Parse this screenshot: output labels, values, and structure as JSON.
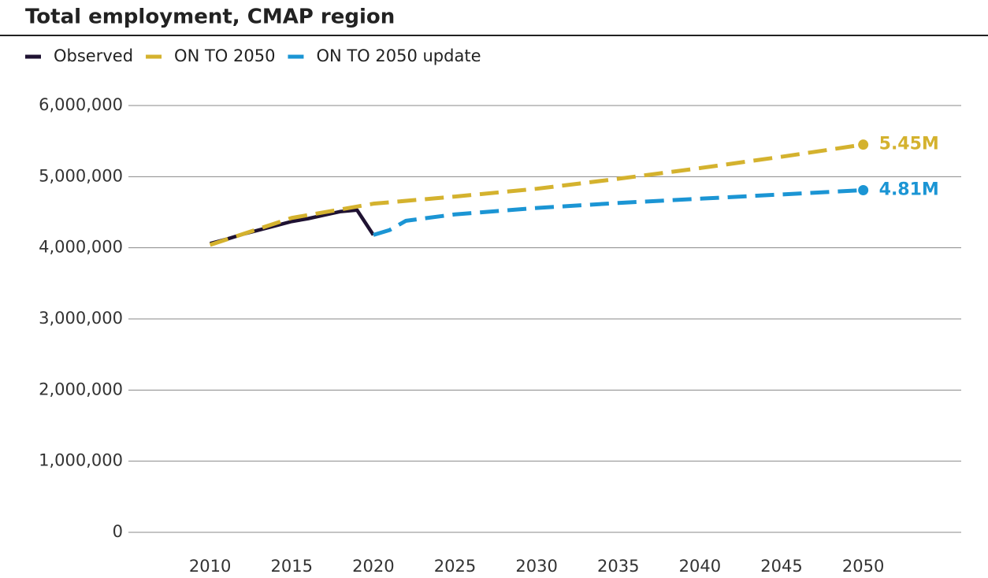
{
  "chart_data": {
    "type": "line",
    "title": "Total employment, CMAP region",
    "series": [
      {
        "name": "Observed",
        "color": "#1f1232",
        "dash": false,
        "x": [
          2010,
          2011,
          2012,
          2013,
          2014,
          2015,
          2016,
          2017,
          2018,
          2019,
          2020
        ],
        "values": [
          4060000,
          4120000,
          4190000,
          4250000,
          4310000,
          4370000,
          4410000,
          4460000,
          4510000,
          4530000,
          4180000
        ]
      },
      {
        "name": "ON TO 2050",
        "color": "#d4b22e",
        "dash": true,
        "x": [
          2010,
          2015,
          2020,
          2025,
          2030,
          2035,
          2040,
          2045,
          2050
        ],
        "values": [
          4040000,
          4420000,
          4620000,
          4720000,
          4830000,
          4970000,
          5120000,
          5280000,
          5450000
        ],
        "value_labels": [
          null,
          null,
          null,
          null,
          null,
          null,
          null,
          null,
          "5.45M"
        ]
      },
      {
        "name": "ON TO 2050 update",
        "color": "#1b95d4",
        "dash": true,
        "x": [
          2020,
          2021,
          2022,
          2025,
          2030,
          2035,
          2040,
          2045,
          2050
        ],
        "values": [
          4180000,
          4250000,
          4380000,
          4470000,
          4560000,
          4630000,
          4690000,
          4750000,
          4810000
        ],
        "value_labels": [
          null,
          null,
          null,
          null,
          null,
          null,
          null,
          null,
          "4.81M"
        ]
      }
    ],
    "xlim": [
      2005,
      2056
    ],
    "xticks": [
      2010,
      2015,
      2020,
      2025,
      2030,
      2035,
      2040,
      2045,
      2050
    ],
    "ylim": [
      0,
      6000000
    ],
    "yticks": [
      0,
      {
        "value": 1000000,
        "label": "1,000,000"
      },
      {
        "value": 2000000,
        "label": "2,000,000"
      },
      {
        "value": 3000000,
        "label": "3,000,000"
      },
      {
        "value": 4000000,
        "label": "4,000,000"
      },
      {
        "value": 5000000,
        "label": "5,000,000"
      },
      {
        "value": 6000000,
        "label": "6,000,000"
      }
    ],
    "grid": true
  }
}
